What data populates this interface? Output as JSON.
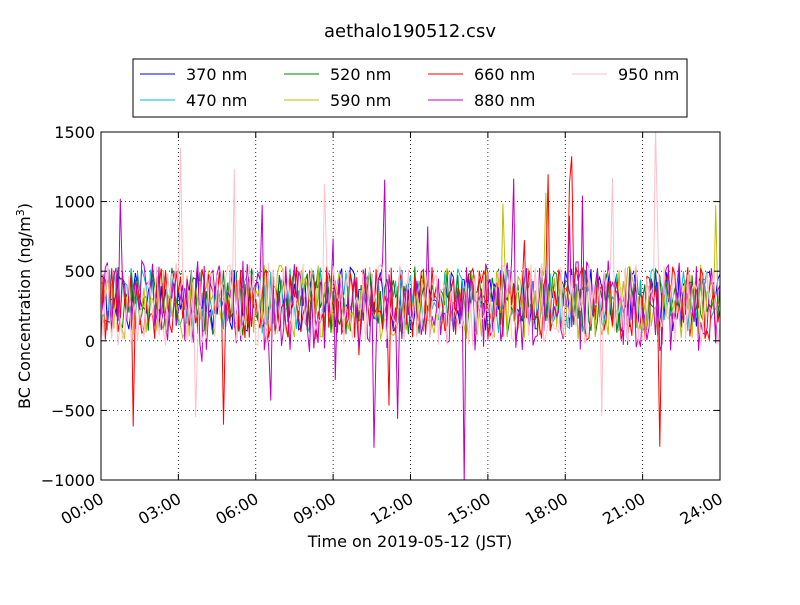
{
  "chart_data": {
    "type": "line",
    "title": "aethalo190512.csv",
    "xlabel": "Time on 2019-05-12 (JST)",
    "ylabel_text": "BC Concentration (ng/m",
    "ylabel_sup": "3",
    "ylabel_close": ")",
    "xlim": [
      "00:00",
      "24:00"
    ],
    "ylim": [
      -1000,
      1500
    ],
    "x_ticks": [
      "00:00",
      "03:00",
      "06:00",
      "09:00",
      "12:00",
      "15:00",
      "18:00",
      "21:00",
      "24:00"
    ],
    "y_ticks": [
      "−1000",
      "−500",
      "0",
      "500",
      "1000",
      "1500"
    ],
    "y_tick_values": [
      -1000,
      -500,
      0,
      500,
      1000,
      1500
    ],
    "grid": true,
    "legend_position": "top",
    "sampling_interval_minutes": 5,
    "series": [
      {
        "name": "370 nm",
        "color": "#0000ff",
        "mean": 300,
        "amplitude": 230,
        "spike": 0.0
      },
      {
        "name": "470 nm",
        "color": "#00bfbf",
        "mean": 290,
        "amplitude": 240,
        "spike": 0.0
      },
      {
        "name": "520 nm",
        "color": "#008000",
        "mean": 285,
        "amplitude": 250,
        "spike": 0.0
      },
      {
        "name": "590 nm",
        "color": "#bfbf00",
        "mean": 280,
        "amplitude": 270,
        "spike": 0.1
      },
      {
        "name": "660 nm",
        "color": "#ff0000",
        "mean": 270,
        "amplitude": 270,
        "spike": 0.1
      },
      {
        "name": "880 nm",
        "color": "#bf00bf",
        "mean": 250,
        "amplitude": 330,
        "spike": 0.45
      },
      {
        "name": "950 nm",
        "color": "#ffc0cb",
        "mean": 260,
        "amplitude": 300,
        "spike": 0.25
      }
    ]
  }
}
